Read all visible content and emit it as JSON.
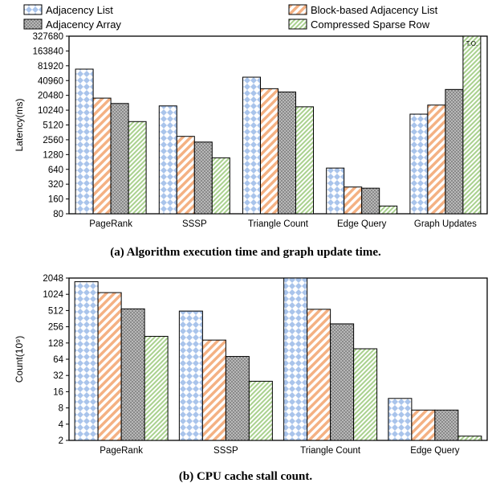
{
  "legend": [
    {
      "label": "Adjacency List",
      "pattern": "pat-al"
    },
    {
      "label": "Block-based Adjacency List",
      "pattern": "pat-bal"
    },
    {
      "label": "Adjacency Array",
      "pattern": "pat-aa"
    },
    {
      "label": "Compressed Sparse Row",
      "pattern": "pat-csr"
    }
  ],
  "colors": {
    "adjacency_list": "#a9c4eb",
    "block_based_adjacency_list": "#f4b183",
    "adjacency_array": "#7f7f7f",
    "compressed_sparse_row": "#a9d18e"
  },
  "chart_data": [
    {
      "type": "bar",
      "caption": "(a) Algorithm execution time and graph update time.",
      "ylabel": "Latency(ms)",
      "xlabel": "",
      "log_scale": true,
      "log_base": 2,
      "ylim": [
        80,
        327680
      ],
      "yticks": [
        80,
        160,
        320,
        640,
        1280,
        2560,
        5120,
        10240,
        20480,
        40960,
        81920,
        163840,
        327680
      ],
      "categories": [
        "PageRank",
        "SSSP",
        "Triangle Count",
        "Edge Query",
        "Graph Updates"
      ],
      "series": [
        {
          "name": "Adjacency List",
          "values": [
            70000,
            12500,
            48000,
            680,
            8500
          ]
        },
        {
          "name": "Block-based Adjacency List",
          "values": [
            18000,
            3000,
            28000,
            280,
            13000
          ]
        },
        {
          "name": "Adjacency Array",
          "values": [
            14000,
            2300,
            24000,
            265,
            27000
          ]
        },
        {
          "name": "Compressed Sparse Row",
          "values": [
            6000,
            1100,
            12000,
            115,
            327680
          ]
        }
      ],
      "annotation": "T.O.",
      "grid": false
    },
    {
      "type": "bar",
      "caption": "(b) CPU cache stall count.",
      "ylabel": "Count(10⁹)",
      "xlabel": "",
      "log_scale": true,
      "log_base": 2,
      "ylim": [
        2,
        2048
      ],
      "yticks": [
        2,
        4,
        8,
        16,
        32,
        64,
        128,
        256,
        512,
        1024,
        2048
      ],
      "categories": [
        "PageRank",
        "SSSP",
        "Triangle Count",
        "Edge Query"
      ],
      "series": [
        {
          "name": "Adjacency List",
          "values": [
            1750,
            500,
            2048,
            12
          ]
        },
        {
          "name": "Block-based Adjacency List",
          "values": [
            1100,
            145,
            540,
            7.3
          ]
        },
        {
          "name": "Adjacency Array",
          "values": [
            550,
            72,
            290,
            7.3
          ]
        },
        {
          "name": "Compressed Sparse Row",
          "values": [
            170,
            25,
            100,
            2.4
          ]
        }
      ],
      "grid": false
    }
  ]
}
